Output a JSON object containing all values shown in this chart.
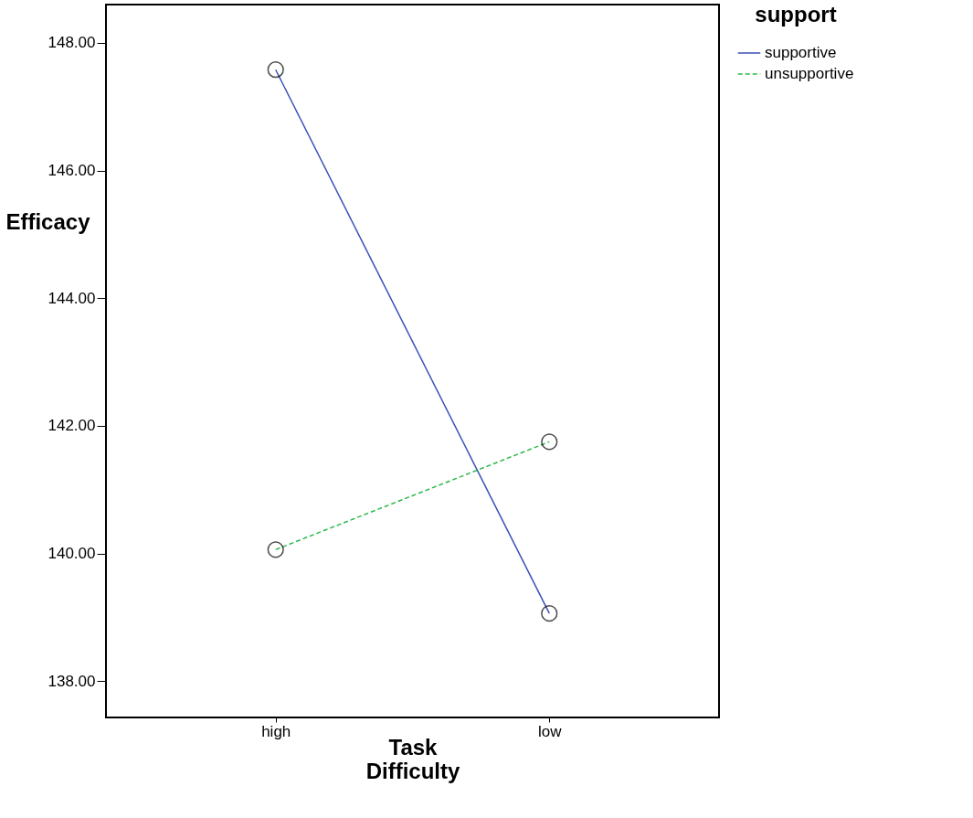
{
  "chart_data": {
    "type": "line",
    "xlabel": "Task Difficulty",
    "ylabel": "Efficacy",
    "legend_title": "support",
    "legend": "top right",
    "grid": false,
    "marker": "circle",
    "categories": [
      "high",
      "low"
    ],
    "ylim": [
      137.43,
      148.6
    ],
    "yticks": [
      {
        "value": 138,
        "label": "138.00"
      },
      {
        "value": 140,
        "label": "140.00"
      },
      {
        "value": 142,
        "label": "142.00"
      },
      {
        "value": 144,
        "label": "144.00"
      },
      {
        "value": 146,
        "label": "146.00"
      },
      {
        "value": 148,
        "label": "148.00"
      }
    ],
    "series": [
      {
        "name": "supportive",
        "color": "#3a4fb8",
        "line_style": "solid",
        "values": [
          147.58,
          139.06
        ]
      },
      {
        "name": "unsupportive",
        "color": "#2db84a",
        "line_style": "dashed",
        "values": [
          140.06,
          141.75
        ]
      }
    ]
  }
}
